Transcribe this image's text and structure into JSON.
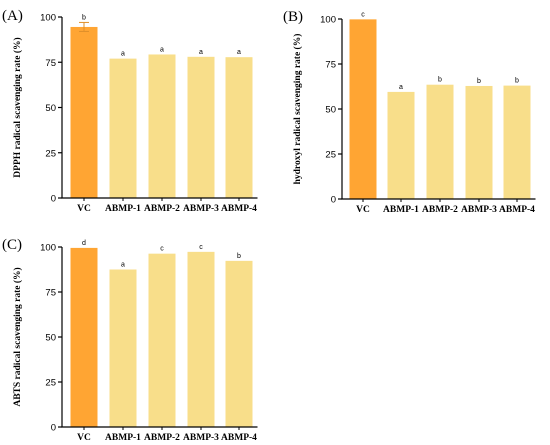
{
  "colors": {
    "vc": "#FFA533",
    "abmp": "#F8DE8A",
    "axis": "#000000"
  },
  "chart_data": [
    {
      "type": "bar",
      "panel_label": "(A)",
      "ylabel": "DPPH radical scavenging rate (%)",
      "xlabel": "",
      "categories": [
        "VC",
        "ABMP-1",
        "ABMP-2",
        "ABMP-3",
        "ABMP-4"
      ],
      "values": [
        94.5,
        77,
        79.3,
        78,
        77.8
      ],
      "errors": [
        2.5,
        0,
        0,
        0,
        0
      ],
      "labels": [
        "b",
        "a",
        "a",
        "a",
        "a"
      ],
      "ylim": [
        0,
        100
      ],
      "yticks": [
        0,
        25,
        50,
        75,
        100
      ],
      "grid": false
    },
    {
      "type": "bar",
      "panel_label": "(B)",
      "ylabel": "hydroxyl radical scavenging rate (%)",
      "xlabel": "",
      "categories": [
        "VC",
        "ABMP-1",
        "ABMP-2",
        "ABMP-3",
        "ABMP-4"
      ],
      "values": [
        99.8,
        59.5,
        63.5,
        62.8,
        63
      ],
      "errors": [
        0,
        0,
        0,
        0,
        0
      ],
      "labels": [
        "c",
        "a",
        "b",
        "b",
        "b"
      ],
      "ylim": [
        0,
        100
      ],
      "yticks": [
        0,
        25,
        50,
        75,
        100
      ],
      "grid": false
    },
    {
      "type": "bar",
      "panel_label": "(C)",
      "ylabel": "ABTS radical scavenging rate (%)",
      "xlabel": "",
      "categories": [
        "VC",
        "ABMP-1",
        "ABMP-2",
        "ABMP-3",
        "ABMP-4"
      ],
      "values": [
        99.5,
        87.5,
        96.3,
        97.3,
        92.3
      ],
      "errors": [
        0,
        0,
        0,
        0,
        0
      ],
      "labels": [
        "d",
        "a",
        "c",
        "c",
        "b"
      ],
      "ylim": [
        0,
        100
      ],
      "yticks": [
        0,
        25,
        50,
        75,
        100
      ],
      "grid": false
    }
  ]
}
